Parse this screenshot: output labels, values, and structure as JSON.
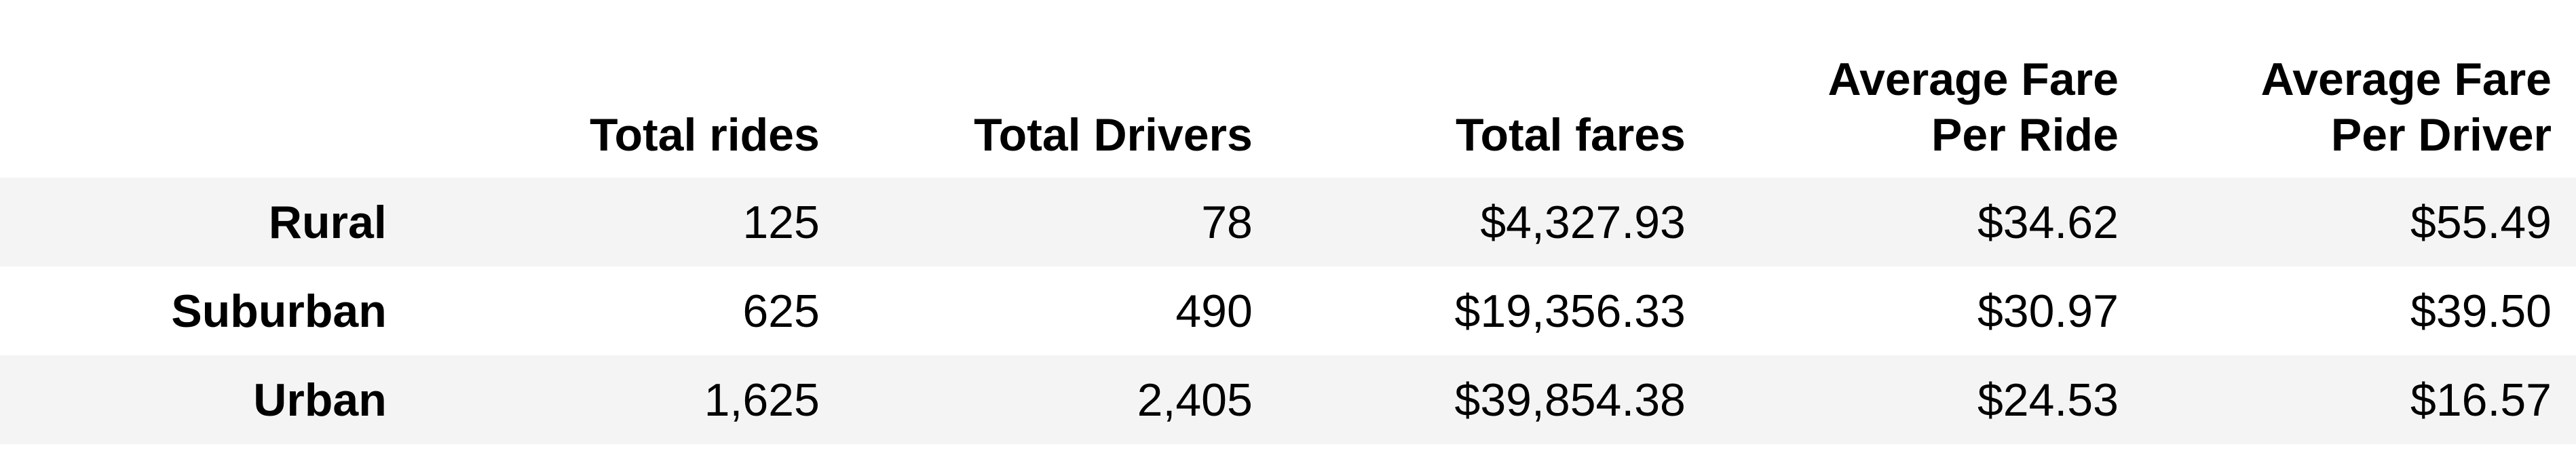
{
  "chart_data": {
    "type": "table",
    "columns": [
      "",
      "Total rides",
      "Total Drivers",
      "Total fares",
      "Average Fare\nPer Ride",
      "Average Fare\nPer Driver"
    ],
    "rows": [
      [
        "Rural",
        "125",
        "78",
        "$4,327.93",
        "$34.62",
        "$55.49"
      ],
      [
        "Suburban",
        "625",
        "490",
        "$19,356.33",
        "$30.97",
        "$39.50"
      ],
      [
        "Urban",
        "1,625",
        "2,405",
        "$39,854.38",
        "$24.53",
        "$16.57"
      ]
    ],
    "values": {
      "Rural": {
        "total_rides": 125,
        "total_drivers": 78,
        "total_fares": 4327.93,
        "avg_fare_per_ride": 34.62,
        "avg_fare_per_driver": 55.49
      },
      "Suburban": {
        "total_rides": 625,
        "total_drivers": 490,
        "total_fares": 19356.33,
        "avg_fare_per_ride": 30.97,
        "avg_fare_per_driver": 39.5
      },
      "Urban": {
        "total_rides": 1625,
        "total_drivers": 2405,
        "total_fares": 39854.38,
        "avg_fare_per_ride": 24.53,
        "avg_fare_per_driver": 16.57
      }
    },
    "row_stripe_color": "#f4f4f4",
    "header_background": "#ffffff"
  }
}
